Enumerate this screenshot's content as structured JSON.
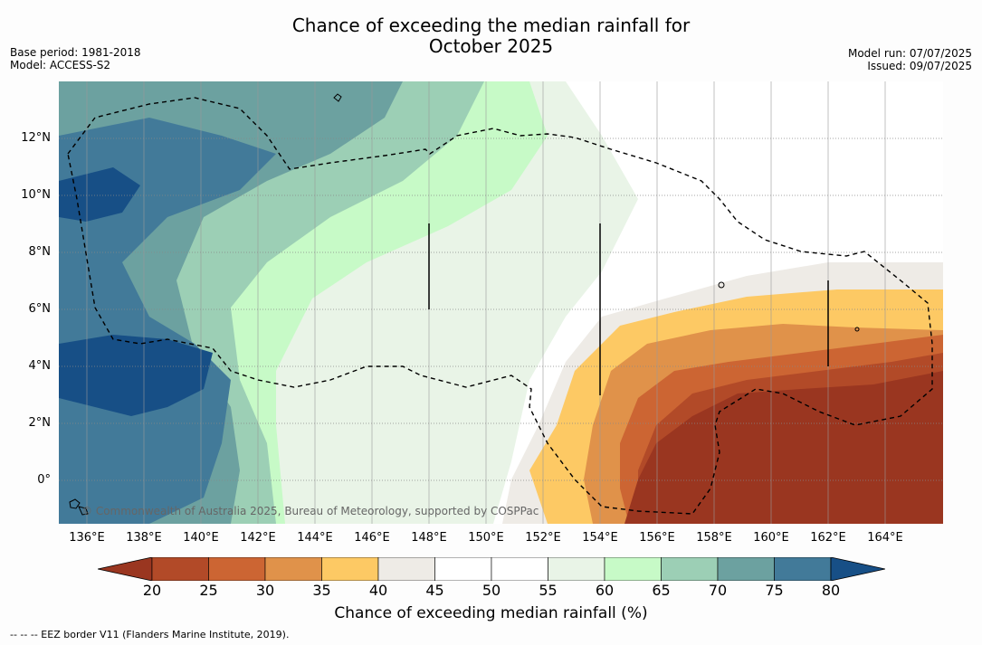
{
  "title_line1": "Chance of exceeding the median rainfall for",
  "title_line2": "October 2025",
  "base_period": "Base period: 1981-2018",
  "model": "Model: ACCESS-S2",
  "model_run": "Model run: 07/07/2025",
  "issued": "Issued: 09/07/2025",
  "copyright": "© Commonwealth of Australia 2025, Bureau of Meteorology, supported by COSPPac",
  "colorbar_label": "Chance of exceeding median rainfall (%)",
  "footnote": "--  --  -- EEZ border V11 (Flanders Marine Institute, 2019).",
  "y_ticks": [
    "12°N",
    "10°N",
    "8°N",
    "6°N",
    "4°N",
    "2°N",
    "0°"
  ],
  "x_ticks": [
    "136°E",
    "138°E",
    "140°E",
    "142°E",
    "144°E",
    "146°E",
    "148°E",
    "150°E",
    "152°E",
    "154°E",
    "156°E",
    "158°E",
    "160°E",
    "162°E",
    "164°E"
  ],
  "colorbar_ticks": [
    "20",
    "25",
    "30",
    "35",
    "40",
    "45",
    "50",
    "55",
    "60",
    "65",
    "70",
    "75",
    "80"
  ],
  "colorbar_colors": [
    "#9a3620",
    "#b24a28",
    "#cc6533",
    "#e0924a",
    "#fdc964",
    "#eeebe6",
    "#ffffff",
    "#ffffff",
    "#e9f4e7",
    "#c7fac7",
    "#9ccfb5",
    "#6ca1a0",
    "#427a99",
    "#174f86"
  ],
  "map_extent": {
    "lon": [
      135,
      166
    ],
    "lat": [
      -1.5,
      14
    ]
  },
  "map": {
    "gridlines": true,
    "coastline": true,
    "eez_border": "dashed",
    "region_lines": "solid"
  }
}
